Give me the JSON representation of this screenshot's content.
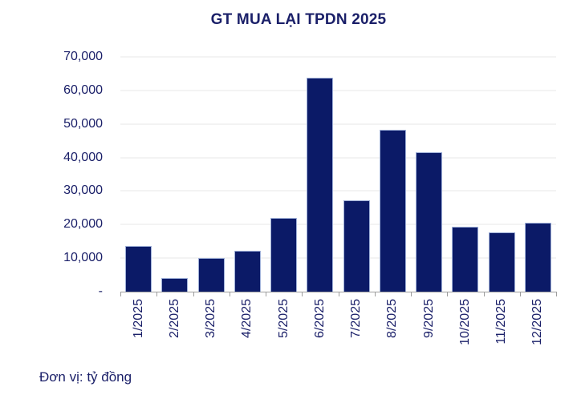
{
  "title": "GT MUA LẠI TPDN 2025",
  "footer_note": "Đơn vị: tỷ đồng",
  "colors": {
    "bar_fill": "#0b1a67",
    "bar_edge": "#9fb0d8",
    "text_navy": "#1b2069",
    "gridline": "#f3f3f3",
    "axis": "#9e9e9e",
    "background": "#ffffff"
  },
  "chart_data": {
    "type": "bar",
    "title": "GT MUA LẠI TPDN 2025",
    "unit_note": "Đơn vị: tỷ đồng",
    "xlabel": "",
    "ylabel": "",
    "categories": [
      "1/2025",
      "2/2025",
      "3/2025",
      "4/2025",
      "5/2025",
      "6/2025",
      "7/2025",
      "8/2025",
      "9/2025",
      "10/2025",
      "11/2025",
      "12/2025"
    ],
    "values": [
      13700,
      4000,
      10100,
      12100,
      21900,
      63800,
      27200,
      48300,
      41500,
      19400,
      17700,
      20500
    ],
    "ylim": [
      0,
      70000
    ],
    "y_tick_interval": 10000,
    "y_tick_labels": [
      "70,000",
      "60,000",
      "50,000",
      "40,000",
      "30,000",
      "20,000",
      "10,000",
      "-"
    ],
    "grid": true,
    "legend_position": "none"
  }
}
